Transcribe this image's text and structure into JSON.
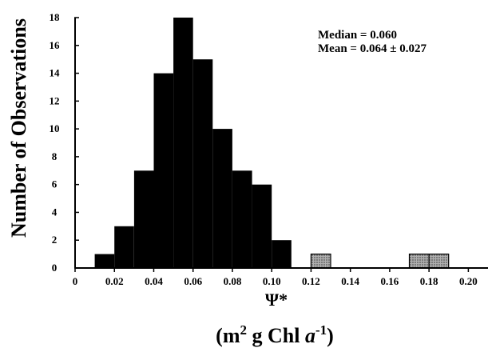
{
  "chart_data": {
    "type": "bar",
    "ylabel": "Number of Observations",
    "xlabel": "Ψ*",
    "xlabel_units": {
      "open": "(m",
      "sup1": "2",
      "mid": " g Chl ",
      "ital": "a",
      "sup2": "-1",
      "close": ")"
    },
    "xlim": [
      0,
      0.21
    ],
    "ylim": [
      0,
      18
    ],
    "bin_width": 0.01,
    "bins": [
      {
        "x0": 0.01,
        "x1": 0.02,
        "value": 1,
        "style": "solid"
      },
      {
        "x0": 0.02,
        "x1": 0.03,
        "value": 3,
        "style": "solid"
      },
      {
        "x0": 0.03,
        "x1": 0.04,
        "value": 7,
        "style": "solid"
      },
      {
        "x0": 0.04,
        "x1": 0.05,
        "value": 14,
        "style": "solid"
      },
      {
        "x0": 0.05,
        "x1": 0.06,
        "value": 18,
        "style": "solid"
      },
      {
        "x0": 0.06,
        "x1": 0.07,
        "value": 15,
        "style": "solid"
      },
      {
        "x0": 0.07,
        "x1": 0.08,
        "value": 10,
        "style": "solid"
      },
      {
        "x0": 0.08,
        "x1": 0.09,
        "value": 7,
        "style": "solid"
      },
      {
        "x0": 0.09,
        "x1": 0.1,
        "value": 6,
        "style": "solid"
      },
      {
        "x0": 0.1,
        "x1": 0.11,
        "value": 2,
        "style": "solid"
      },
      {
        "x0": 0.12,
        "x1": 0.13,
        "value": 1,
        "style": "hatched"
      },
      {
        "x0": 0.17,
        "x1": 0.18,
        "value": 1,
        "style": "hatched"
      },
      {
        "x0": 0.18,
        "x1": 0.19,
        "value": 1,
        "style": "hatched"
      }
    ],
    "x_ticks": [
      "0",
      "0.02",
      "0.04",
      "0.06",
      "0.08",
      "0.10",
      "0.12",
      "0.14",
      "0.16",
      "0.18",
      "0.20"
    ],
    "y_ticks": [
      "0",
      "2",
      "4",
      "6",
      "8",
      "10",
      "12",
      "14",
      "16",
      "18"
    ],
    "annotations": {
      "median": "Median = 0.060",
      "mean": "Mean  = 0.064 ± 0.027"
    },
    "colors": {
      "solid": "#000000",
      "hatched": "#8a8a8a"
    },
    "grid": false
  }
}
